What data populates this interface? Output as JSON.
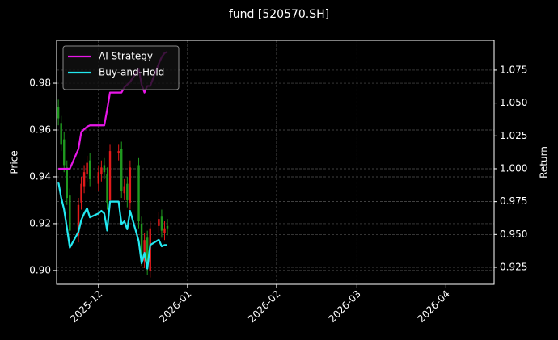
{
  "chart_data": {
    "type": "candlestick",
    "title": "fund [520570.SH]",
    "ylabel": "Price",
    "y2label": "Return",
    "x": [
      -14,
      -13,
      -12,
      -11,
      -10,
      -7,
      -6,
      -5,
      -4,
      -3,
      0,
      1,
      2,
      3,
      4,
      7,
      8,
      9,
      10,
      11,
      14,
      15,
      16,
      17,
      18,
      21,
      22,
      23,
      24
    ],
    "open": [
      0.97,
      0.963,
      0.956,
      0.944,
      0.932,
      0.915,
      0.929,
      0.936,
      0.941,
      0.947,
      0.937,
      0.941,
      0.945,
      0.941,
      0.93,
      0.95,
      0.952,
      0.933,
      0.937,
      0.929,
      0.945,
      0.92,
      0.904,
      0.914,
      0.9,
      0.919,
      0.923,
      0.916,
      0.919
    ],
    "high": [
      0.973,
      0.966,
      0.959,
      0.947,
      0.935,
      0.931,
      0.94,
      0.945,
      0.949,
      0.95,
      0.945,
      0.947,
      0.948,
      0.944,
      0.954,
      0.954,
      0.955,
      0.939,
      0.94,
      0.947,
      0.948,
      0.923,
      0.916,
      0.917,
      0.921,
      0.925,
      0.926,
      0.921,
      0.922
    ],
    "low": [
      0.962,
      0.951,
      0.942,
      0.928,
      0.914,
      0.912,
      0.926,
      0.933,
      0.938,
      0.936,
      0.934,
      0.938,
      0.939,
      0.926,
      0.927,
      0.947,
      0.931,
      0.93,
      0.927,
      0.926,
      0.918,
      0.902,
      0.901,
      0.898,
      0.897,
      0.916,
      0.914,
      0.913,
      0.915
    ],
    "close": [
      0.965,
      0.954,
      0.945,
      0.931,
      0.917,
      0.928,
      0.937,
      0.942,
      0.946,
      0.939,
      0.942,
      0.944,
      0.942,
      0.929,
      0.951,
      0.951,
      0.934,
      0.936,
      0.93,
      0.944,
      0.921,
      0.905,
      0.913,
      0.901,
      0.918,
      0.922,
      0.917,
      0.918,
      0.918
    ],
    "up_color": "#e31a1a",
    "down_color": "#1f9a1f",
    "series": [
      {
        "name": "AI Strategy",
        "color": "#e817e8",
        "axis": "y2",
        "values": [
          1.0,
          1.0,
          1.0,
          1.0,
          1.0,
          1.015,
          1.028,
          1.03,
          1.032,
          1.033,
          1.033,
          1.033,
          1.033,
          1.045,
          1.058,
          1.058,
          1.058,
          1.062,
          1.064,
          1.066,
          1.076,
          1.064,
          1.058,
          1.063,
          1.063,
          1.08,
          1.085,
          1.088,
          1.089
        ]
      },
      {
        "name": "Buy-and-Hold",
        "color": "#22e8f0",
        "axis": "y2",
        "values": [
          0.99,
          0.978,
          0.969,
          0.955,
          0.94,
          0.952,
          0.961,
          0.966,
          0.97,
          0.963,
          0.966,
          0.968,
          0.966,
          0.953,
          0.975,
          0.975,
          0.958,
          0.96,
          0.954,
          0.968,
          0.945,
          0.928,
          0.936,
          0.924,
          0.942,
          0.946,
          0.941,
          0.942,
          0.942
        ]
      }
    ],
    "xlim": [
      -14.6,
      137.8
    ],
    "xticks": [
      {
        "value": 0,
        "label": "2025-12"
      },
      {
        "value": 31,
        "label": "2026-01"
      },
      {
        "value": 62,
        "label": "2026-02"
      },
      {
        "value": 90,
        "label": "2026-03"
      },
      {
        "value": 121,
        "label": "2026-04"
      }
    ],
    "ylim": [
      0.8941,
      0.9983
    ],
    "yticks": [
      {
        "value": 0.9,
        "label": "0.90"
      },
      0.92,
      0.94,
      0.96,
      0.98
    ],
    "y2lim": [
      0.9121,
      1.0977
    ],
    "y2ticks": [
      0.925,
      {
        "value": 0.95,
        "label": "0.950"
      },
      0.975,
      {
        "value": 1.0,
        "label": "1.000"
      },
      1.025,
      {
        "value": 1.05,
        "label": "1.050"
      },
      1.075
    ],
    "grid": true,
    "legend": "upper left"
  }
}
